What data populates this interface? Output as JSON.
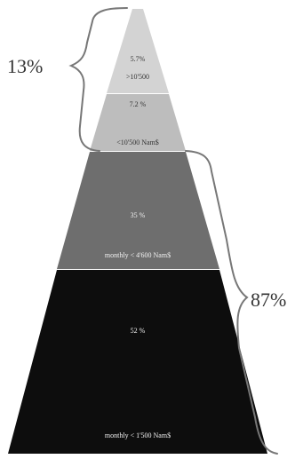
{
  "pyramid": {
    "segments": [
      {
        "pct": "5.7%",
        "label": ">10'500",
        "color": "#d3d3d3",
        "text_color": "#333333"
      },
      {
        "pct": "7.2 %",
        "label": "<10'500 Nam$",
        "color": "#bdbdbd",
        "text_color": "#333333"
      },
      {
        "pct": "35 %",
        "label": "monthly < 4'600 Nam$",
        "color": "#6e6e6e",
        "text_color": "#f2f2f2"
      },
      {
        "pct": "52 %",
        "label": "monthly < 1'500 Nam$",
        "color": "#0d0d0d",
        "text_color": "#f2f2f2"
      }
    ]
  },
  "brackets": {
    "upper": {
      "value": "13%"
    },
    "lower": {
      "value": "87%"
    }
  },
  "bracket_color": "#777777"
}
